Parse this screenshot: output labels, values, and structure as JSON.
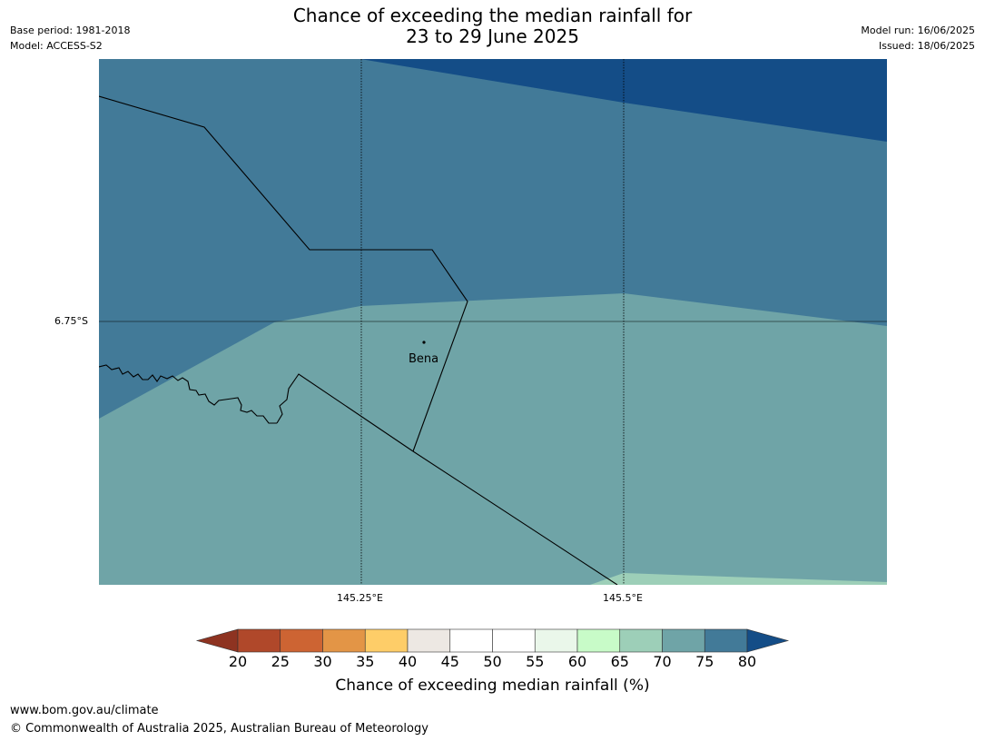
{
  "title": {
    "line1": "Chance of exceeding the median rainfall for",
    "line2": "23 to 29 June 2025"
  },
  "meta_left": {
    "base_period": "Base period: 1981-2018",
    "model": "Model: ACCESS-S2"
  },
  "meta_right": {
    "model_run": "Model run: 16/06/2025",
    "issued": "Issued: 18/06/2025"
  },
  "map": {
    "gridlines": {
      "latitude_label": "6.75°S",
      "longitude_labels": [
        "145.25°E",
        "145.5°E"
      ]
    },
    "place": {
      "name": "Bena"
    },
    "region_colors": {
      "band_80_plus": "#144d87",
      "band_75_80": "#427a98",
      "band_70_75": "#6fa4a7",
      "band_65_70": "#9dcfb8"
    }
  },
  "colorbar": {
    "title": "Chance of exceeding median rainfall (%)",
    "ticks": [
      "20",
      "25",
      "30",
      "35",
      "40",
      "45",
      "50",
      "55",
      "60",
      "65",
      "70",
      "75",
      "80"
    ],
    "under_color": "#8e3321",
    "over_color": "#144d87",
    "bins": [
      {
        "from": 20,
        "to": 25,
        "color": "#b0482a"
      },
      {
        "from": 25,
        "to": 30,
        "color": "#cd6433"
      },
      {
        "from": 30,
        "to": 35,
        "color": "#e39546"
      },
      {
        "from": 35,
        "to": 40,
        "color": "#fecd68"
      },
      {
        "from": 40,
        "to": 45,
        "color": "#ede8e3"
      },
      {
        "from": 45,
        "to": 50,
        "color": "#ffffff"
      },
      {
        "from": 50,
        "to": 55,
        "color": "#ffffff"
      },
      {
        "from": 55,
        "to": 60,
        "color": "#eaf7ea"
      },
      {
        "from": 60,
        "to": 65,
        "color": "#c8fbc8"
      },
      {
        "from": 65,
        "to": 70,
        "color": "#9dcfb8"
      },
      {
        "from": 70,
        "to": 75,
        "color": "#6fa4a7"
      },
      {
        "from": 75,
        "to": 80,
        "color": "#427a98"
      }
    ]
  },
  "footer": {
    "url": "www.bom.gov.au/climate",
    "copyright": "© Commonwealth of Australia 2025, Australian Bureau of Meteorology"
  }
}
